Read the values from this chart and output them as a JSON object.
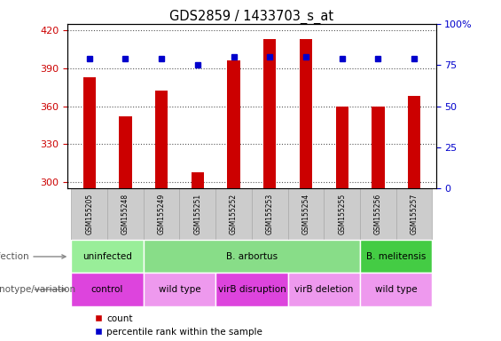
{
  "title": "GDS2859 / 1433703_s_at",
  "samples": [
    "GSM155205",
    "GSM155248",
    "GSM155249",
    "GSM155251",
    "GSM155252",
    "GSM155253",
    "GSM155254",
    "GSM155255",
    "GSM155256",
    "GSM155257"
  ],
  "counts": [
    383,
    352,
    372,
    308,
    396,
    413,
    413,
    360,
    360,
    368
  ],
  "percentile_ranks": [
    79,
    79,
    79,
    75,
    80,
    80,
    80,
    79,
    79,
    79
  ],
  "ylim_left": [
    295,
    425
  ],
  "ylim_right": [
    0,
    100
  ],
  "yticks_left": [
    300,
    330,
    360,
    390,
    420
  ],
  "yticks_right": [
    0,
    25,
    50,
    75,
    100
  ],
  "bar_color": "#cc0000",
  "dot_color": "#0000cc",
  "bar_width": 0.35,
  "infection_groups": [
    {
      "label": "uninfected",
      "start": 0,
      "end": 2,
      "color": "#99ee99"
    },
    {
      "label": "B. arbortus",
      "start": 2,
      "end": 8,
      "color": "#88dd88"
    },
    {
      "label": "B. melitensis",
      "start": 8,
      "end": 10,
      "color": "#44cc44"
    }
  ],
  "genotype_groups": [
    {
      "label": "control",
      "start": 0,
      "end": 2,
      "color": "#dd44dd"
    },
    {
      "label": "wild type",
      "start": 2,
      "end": 4,
      "color": "#ee99ee"
    },
    {
      "label": "virB disruption",
      "start": 4,
      "end": 6,
      "color": "#dd44dd"
    },
    {
      "label": "virB deletion",
      "start": 6,
      "end": 8,
      "color": "#ee99ee"
    },
    {
      "label": "wild type",
      "start": 8,
      "end": 10,
      "color": "#ee99ee"
    }
  ],
  "infection_label": "infection",
  "genotype_label": "genotype/variation",
  "legend_count_label": "count",
  "legend_pct_label": "percentile rank within the sample",
  "grid_color": "#555555",
  "tick_label_color_left": "#cc0000",
  "tick_label_color_right": "#0000cc",
  "sample_bg_color": "#cccccc",
  "sample_border_color": "#aaaaaa",
  "bg_color": "#ffffff"
}
